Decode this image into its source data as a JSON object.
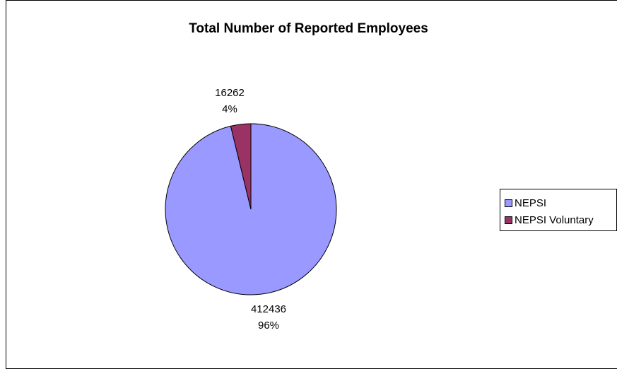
{
  "chart_data": {
    "type": "pie",
    "title": "Total Number of Reported Employees",
    "slices": [
      {
        "name": "NEPSI",
        "value": 412436,
        "percent_label": "96%",
        "color": "#9999ff"
      },
      {
        "name": "NEPSI Voluntary",
        "value": 16262,
        "percent_label": "4%",
        "color": "#993366"
      }
    ],
    "legend_position": "right",
    "start_angle": "top, clockwise from 12 o'clock with smaller slice ending at top"
  }
}
